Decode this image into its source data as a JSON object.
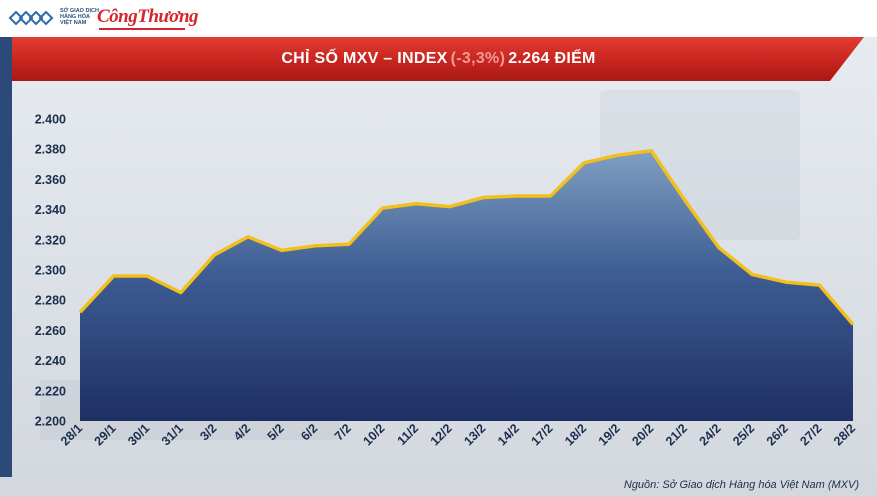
{
  "header": {
    "logo_lines": [
      "SỞ GIAO DỊCH",
      "HÀNG HÓA",
      "VIỆT NAM"
    ],
    "brand": "CôngThương"
  },
  "banner": {
    "title_prefix": "CHỈ SỐ MXV – INDEX",
    "change": "(-3,3%)",
    "title_suffix": "2.264 ĐIỂM"
  },
  "colors": {
    "line": "#f2c01c",
    "area_top": "#7f9fc3",
    "area_bottom": "#1e2f63",
    "banner": "#c4231d"
  },
  "chart_data": {
    "type": "area",
    "title": "CHỈ SỐ MXV – INDEX (-3,3%) 2.264 ĐIỂM",
    "categories": [
      "28/1",
      "29/1",
      "30/1",
      "31/1",
      "3/2",
      "4/2",
      "5/2",
      "6/2",
      "7/2",
      "10/2",
      "11/2",
      "12/2",
      "13/2",
      "14/2",
      "17/2",
      "18/2",
      "19/2",
      "20/2",
      "21/2",
      "24/2",
      "25/2",
      "26/2",
      "27/2",
      "28/2"
    ],
    "values": [
      2272,
      2296,
      2296,
      2285,
      2310,
      2322,
      2313,
      2316,
      2317,
      2341,
      2344,
      2342,
      2348,
      2349,
      2349,
      2371,
      2376,
      2379,
      2346,
      2315,
      2297,
      2292,
      2290,
      2264
    ],
    "yticks": [
      "2.200",
      "2.220",
      "2.240",
      "2.260",
      "2.280",
      "2.300",
      "2.320",
      "2.340",
      "2.360",
      "2.380",
      "2.400"
    ],
    "ylim": [
      2200,
      2400
    ],
    "grid": false,
    "legend": "none"
  },
  "source": "Nguồn: Sở Giao dịch Hàng hóa Việt Nam (MXV)"
}
